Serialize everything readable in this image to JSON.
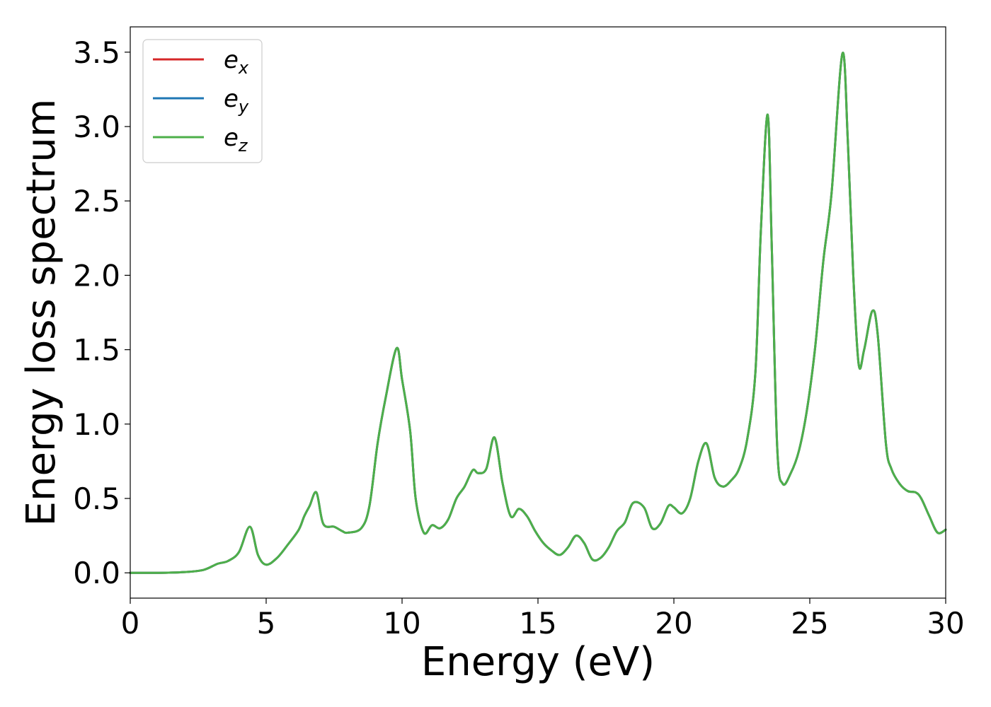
{
  "chart_data": {
    "type": "line",
    "title": "",
    "xlabel": "Energy (eV)",
    "ylabel": "Energy loss spectrum",
    "xlim": [
      0,
      30
    ],
    "ylim": [
      -0.17,
      3.67
    ],
    "xticks": [
      0,
      5,
      10,
      15,
      20,
      25,
      30
    ],
    "xtick_labels": [
      "0",
      "5",
      "10",
      "15",
      "20",
      "25",
      "30"
    ],
    "yticks": [
      0.0,
      0.5,
      1.0,
      1.5,
      2.0,
      2.5,
      3.0,
      3.5
    ],
    "ytick_labels": [
      "0.0",
      "0.5",
      "1.0",
      "1.5",
      "2.0",
      "2.5",
      "3.0",
      "3.5"
    ],
    "grid": false,
    "legend_position": "top-left",
    "legend": [
      {
        "base": "e",
        "sub": "x",
        "color": "#d62728"
      },
      {
        "base": "e",
        "sub": "y",
        "color": "#1f77b4"
      },
      {
        "base": "e",
        "sub": "z",
        "color": "#4daf4a"
      }
    ],
    "x": [
      0,
      1,
      2,
      2.7,
      3.2,
      3.6,
      4.0,
      4.4,
      4.7,
      5.0,
      5.4,
      5.8,
      6.2,
      6.4,
      6.6,
      6.85,
      7.1,
      7.5,
      7.8,
      8.0,
      8.5,
      8.8,
      9.1,
      9.4,
      9.8,
      10.0,
      10.3,
      10.5,
      10.8,
      11.1,
      11.4,
      11.7,
      12.0,
      12.3,
      12.6,
      12.8,
      13.1,
      13.4,
      13.7,
      14.0,
      14.3,
      14.6,
      14.9,
      15.2,
      15.5,
      15.8,
      16.1,
      16.4,
      16.7,
      17.0,
      17.3,
      17.6,
      17.9,
      18.2,
      18.5,
      18.9,
      19.2,
      19.5,
      19.8,
      20.0,
      20.3,
      20.6,
      20.9,
      21.2,
      21.5,
      21.8,
      22.1,
      22.4,
      22.7,
      23.0,
      23.2,
      23.45,
      23.6,
      23.8,
      24.0,
      24.3,
      24.6,
      24.9,
      25.2,
      25.5,
      25.8,
      26.2,
      26.4,
      26.6,
      26.8,
      27.0,
      27.3,
      27.5,
      27.8,
      28.0,
      28.3,
      28.6,
      28.9,
      29.1,
      29.4,
      29.7,
      30.0
    ],
    "series": [
      {
        "name": "e_x",
        "color": "#d62728",
        "values": [
          0.0,
          0.0,
          0.005,
          0.02,
          0.06,
          0.08,
          0.14,
          0.31,
          0.12,
          0.055,
          0.1,
          0.19,
          0.29,
          0.38,
          0.45,
          0.54,
          0.33,
          0.31,
          0.28,
          0.27,
          0.3,
          0.45,
          0.87,
          1.18,
          1.51,
          1.3,
          0.95,
          0.5,
          0.27,
          0.32,
          0.3,
          0.36,
          0.5,
          0.58,
          0.69,
          0.67,
          0.7,
          0.91,
          0.6,
          0.38,
          0.43,
          0.38,
          0.28,
          0.2,
          0.15,
          0.12,
          0.17,
          0.25,
          0.2,
          0.09,
          0.1,
          0.17,
          0.28,
          0.34,
          0.47,
          0.44,
          0.3,
          0.33,
          0.45,
          0.44,
          0.4,
          0.5,
          0.75,
          0.87,
          0.64,
          0.58,
          0.62,
          0.7,
          0.9,
          1.35,
          2.3,
          3.08,
          2.2,
          0.85,
          0.6,
          0.67,
          0.82,
          1.1,
          1.52,
          2.1,
          2.55,
          3.49,
          2.9,
          2.0,
          1.4,
          1.5,
          1.76,
          1.6,
          0.87,
          0.7,
          0.6,
          0.55,
          0.54,
          0.5,
          0.38,
          0.27,
          0.29
        ]
      },
      {
        "name": "e_y",
        "color": "#1f77b4",
        "values": [
          0.0,
          0.0,
          0.005,
          0.02,
          0.06,
          0.08,
          0.14,
          0.31,
          0.12,
          0.055,
          0.1,
          0.19,
          0.29,
          0.38,
          0.45,
          0.54,
          0.33,
          0.31,
          0.28,
          0.27,
          0.3,
          0.45,
          0.87,
          1.18,
          1.51,
          1.3,
          0.95,
          0.5,
          0.27,
          0.32,
          0.3,
          0.36,
          0.5,
          0.58,
          0.69,
          0.67,
          0.7,
          0.91,
          0.6,
          0.38,
          0.43,
          0.38,
          0.28,
          0.2,
          0.15,
          0.12,
          0.17,
          0.25,
          0.2,
          0.09,
          0.1,
          0.17,
          0.28,
          0.34,
          0.47,
          0.44,
          0.3,
          0.33,
          0.45,
          0.44,
          0.4,
          0.5,
          0.75,
          0.87,
          0.64,
          0.58,
          0.62,
          0.7,
          0.9,
          1.35,
          2.3,
          3.08,
          2.2,
          0.85,
          0.6,
          0.67,
          0.82,
          1.1,
          1.52,
          2.1,
          2.55,
          3.49,
          2.9,
          2.0,
          1.4,
          1.5,
          1.76,
          1.6,
          0.87,
          0.7,
          0.6,
          0.55,
          0.54,
          0.5,
          0.38,
          0.27,
          0.29
        ]
      },
      {
        "name": "e_z",
        "color": "#4daf4a",
        "values": [
          0.0,
          0.0,
          0.005,
          0.02,
          0.06,
          0.08,
          0.14,
          0.31,
          0.12,
          0.055,
          0.1,
          0.19,
          0.29,
          0.38,
          0.45,
          0.54,
          0.33,
          0.31,
          0.28,
          0.27,
          0.3,
          0.45,
          0.87,
          1.18,
          1.51,
          1.3,
          0.95,
          0.5,
          0.27,
          0.32,
          0.3,
          0.36,
          0.5,
          0.58,
          0.69,
          0.67,
          0.7,
          0.91,
          0.6,
          0.38,
          0.43,
          0.38,
          0.28,
          0.2,
          0.15,
          0.12,
          0.17,
          0.25,
          0.2,
          0.09,
          0.1,
          0.17,
          0.28,
          0.34,
          0.47,
          0.44,
          0.3,
          0.33,
          0.45,
          0.44,
          0.4,
          0.5,
          0.75,
          0.87,
          0.64,
          0.58,
          0.62,
          0.7,
          0.9,
          1.35,
          2.3,
          3.08,
          2.2,
          0.85,
          0.6,
          0.67,
          0.82,
          1.1,
          1.52,
          2.1,
          2.55,
          3.49,
          2.9,
          2.0,
          1.4,
          1.5,
          1.76,
          1.6,
          0.87,
          0.7,
          0.6,
          0.55,
          0.54,
          0.5,
          0.38,
          0.27,
          0.29
        ]
      }
    ]
  }
}
